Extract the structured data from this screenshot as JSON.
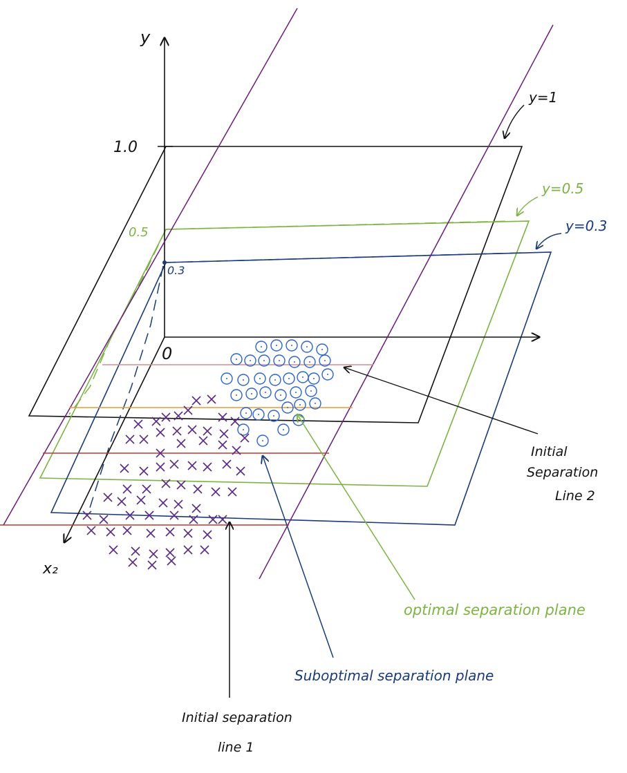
{
  "axes": {
    "y_label": "y",
    "x2_label": "x₂",
    "origin_label": "0",
    "tick_1_0": "1.0",
    "tick_0_5": "0.5",
    "tick_0_3": "0.3"
  },
  "planes": {
    "y1_label": "y=1",
    "y05_label": "y=0.5",
    "y03_label": "y=0.3"
  },
  "annotations": {
    "line2_line1": "Initial",
    "line2_line2": "Separation",
    "line2_line3": "Line 2",
    "optimal": "optimal separation plane",
    "suboptimal": "Suboptimal separation plane",
    "line1_line1": "Initial separation",
    "line1_line2": "line 1"
  },
  "classes": {
    "circles_name": "class-o",
    "crosses_name": "class-x"
  },
  "colors": {
    "black": "#111111",
    "purple": "#6a1b7a",
    "green": "#7cb342",
    "navy": "#1a3a7a",
    "red": "#c0392b",
    "orange": "#e69a2e",
    "pink": "#d98a8a",
    "blue": "#2a62d8",
    "cross": "#5b2a86"
  }
}
